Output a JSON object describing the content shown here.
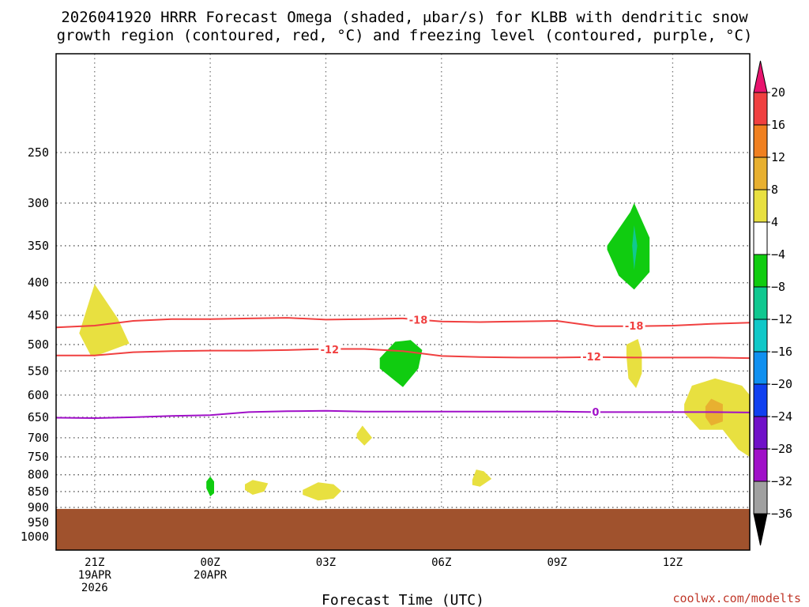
{
  "title_line1": "2026041920 HRRR Forecast Omega (shaded, μbar/s) for KLBB with dendritic snow",
  "title_line2": "growth region (contoured, red, °C) and freezing level (contoured, purple, °C)",
  "credit": "coolwx.com/modelts",
  "chart_data": {
    "type": "time-height cross section",
    "title": "2026041920 HRRR Forecast Omega (shaded, μbar/s) for KLBB with dendritic snow growth region (contoured, red, °C) and freezing level (contoured, purple, °C)",
    "xlabel": "Forecast Time (UTC)",
    "ylabel": "",
    "x_axis": {
      "unit": "hours from 2026-04-19 20Z",
      "range": [
        20,
        38
      ],
      "ticks": [
        {
          "x": 21,
          "labels": [
            "21Z",
            "19APR",
            "2026"
          ]
        },
        {
          "x": 24,
          "labels": [
            "00Z",
            "20APR"
          ]
        },
        {
          "x": 27,
          "labels": [
            "03Z"
          ]
        },
        {
          "x": 30,
          "labels": [
            "06Z"
          ]
        },
        {
          "x": 33,
          "labels": [
            "09Z"
          ]
        },
        {
          "x": 36,
          "labels": [
            "12Z"
          ]
        }
      ]
    },
    "y_axis": {
      "unit": "hPa",
      "scale": "log",
      "range_hPa": [
        1050,
        175
      ],
      "ticks": [
        250,
        300,
        350,
        400,
        450,
        500,
        550,
        600,
        650,
        700,
        750,
        800,
        850,
        900,
        950,
        1000
      ]
    },
    "grid": true,
    "terrain_fill": {
      "top_hPa": 905,
      "color": "#a0522d"
    },
    "colorbar": {
      "labels": [
        "20",
        "16",
        "12",
        "8",
        "4",
        "−4",
        "−8",
        "−12",
        "−16",
        "−20",
        "−24",
        "−28",
        "−32",
        "−36"
      ],
      "colors": [
        "#e8146e",
        "#f04040",
        "#f08020",
        "#e8b030",
        "#e8e040",
        "#ffffff",
        "#10cc10",
        "#10c890",
        "#10c8c8",
        "#1090f0",
        "#1040f0",
        "#7010c8",
        "#a010c8",
        "#a0a0a0",
        "#000000"
      ]
    },
    "contours": [
      {
        "label": "-18",
        "color": "#f04040",
        "points": [
          [
            20,
            470
          ],
          [
            21,
            467
          ],
          [
            22,
            459
          ],
          [
            23,
            456
          ],
          [
            24,
            456
          ],
          [
            25,
            455
          ],
          [
            26,
            454
          ],
          [
            27,
            457
          ],
          [
            28,
            456
          ],
          [
            29,
            455
          ],
          [
            30,
            460
          ],
          [
            31,
            461
          ],
          [
            32,
            460
          ],
          [
            33,
            459
          ],
          [
            34,
            468
          ],
          [
            35,
            468
          ],
          [
            36,
            467
          ],
          [
            37,
            464
          ],
          [
            38,
            462
          ]
        ],
        "label_positions": [
          [
            29.4,
            457
          ],
          [
            35.0,
            467
          ]
        ]
      },
      {
        "label": "-12",
        "color": "#f04040",
        "points": [
          [
            20,
            520
          ],
          [
            21,
            520
          ],
          [
            22,
            514
          ],
          [
            23,
            512
          ],
          [
            24,
            511
          ],
          [
            25,
            511
          ],
          [
            26,
            510
          ],
          [
            27,
            508
          ],
          [
            28,
            508
          ],
          [
            29,
            512
          ],
          [
            30,
            521
          ],
          [
            31,
            523
          ],
          [
            32,
            524
          ],
          [
            33,
            524
          ],
          [
            34,
            523
          ],
          [
            35,
            524
          ],
          [
            36,
            524
          ],
          [
            37,
            524
          ],
          [
            38,
            525
          ]
        ],
        "label_positions": [
          [
            27.1,
            509
          ],
          [
            33.9,
            522
          ]
        ]
      },
      {
        "label": "0",
        "color": "#a010c8",
        "points": [
          [
            20,
            651
          ],
          [
            21,
            652
          ],
          [
            22,
            650
          ],
          [
            23,
            647
          ],
          [
            24,
            645
          ],
          [
            25,
            638
          ],
          [
            26,
            636
          ],
          [
            27,
            635
          ],
          [
            28,
            637
          ],
          [
            29,
            637
          ],
          [
            30,
            637
          ],
          [
            31,
            637
          ],
          [
            32,
            637
          ],
          [
            33,
            637
          ],
          [
            34,
            638
          ],
          [
            35,
            638
          ],
          [
            36,
            638
          ],
          [
            37,
            638
          ],
          [
            38,
            639
          ]
        ],
        "label_positions": [
          [
            34.0,
            637
          ]
        ]
      }
    ],
    "shaded_regions": [
      {
        "name": "omega",
        "range": "4 to 8",
        "points": [
          [
            20.9,
            520
          ],
          [
            20.6,
            480
          ],
          [
            20.9,
            420
          ],
          [
            21.0,
            402
          ],
          [
            21.6,
            455
          ],
          [
            21.9,
            498
          ],
          [
            21.0,
            522
          ]
        ]
      },
      {
        "name": "omega",
        "range": "-8 to -4",
        "points": [
          [
            34.3,
            350
          ],
          [
            34.9,
            310
          ],
          [
            35.0,
            300
          ],
          [
            35.4,
            340
          ],
          [
            35.4,
            385
          ],
          [
            35.0,
            410
          ],
          [
            34.6,
            390
          ],
          [
            34.3,
            355
          ]
        ]
      },
      {
        "name": "omega",
        "range": "-12 to -8",
        "points": [
          [
            35.0,
            325
          ],
          [
            35.08,
            350
          ],
          [
            35.0,
            382
          ],
          [
            34.95,
            350
          ]
        ]
      },
      {
        "name": "omega",
        "range": "-8 to -4",
        "points": [
          [
            28.4,
            525
          ],
          [
            28.8,
            495
          ],
          [
            29.2,
            492
          ],
          [
            29.5,
            510
          ],
          [
            29.4,
            545
          ],
          [
            29.0,
            583
          ],
          [
            28.4,
            545
          ]
        ]
      },
      {
        "name": "omega",
        "range": "4 to 8",
        "points": [
          [
            34.8,
            500
          ],
          [
            35.1,
            490
          ],
          [
            35.2,
            515
          ],
          [
            35.2,
            555
          ],
          [
            35.05,
            585
          ],
          [
            34.85,
            565
          ],
          [
            34.8,
            520
          ]
        ]
      },
      {
        "name": "omega",
        "range": "4 to 8",
        "points": [
          [
            36.3,
            620
          ],
          [
            36.5,
            580
          ],
          [
            37.1,
            565
          ],
          [
            37.8,
            580
          ],
          [
            38.0,
            600
          ],
          [
            38.0,
            750
          ],
          [
            37.7,
            730
          ],
          [
            37.3,
            680
          ],
          [
            36.7,
            680
          ],
          [
            36.3,
            640
          ]
        ]
      },
      {
        "name": "omega",
        "range": "8 to 12",
        "points": [
          [
            36.85,
            625
          ],
          [
            37.0,
            608
          ],
          [
            37.3,
            620
          ],
          [
            37.3,
            660
          ],
          [
            37.0,
            670
          ],
          [
            36.85,
            650
          ]
        ]
      },
      {
        "name": "omega",
        "range": "4 to 8",
        "points": [
          [
            27.8,
            690
          ],
          [
            27.95,
            670
          ],
          [
            28.2,
            700
          ],
          [
            28.0,
            720
          ],
          [
            27.8,
            700
          ]
        ]
      },
      {
        "name": "omega",
        "range": "-8 to -4",
        "points": [
          [
            23.9,
            820
          ],
          [
            24.0,
            805
          ],
          [
            24.1,
            820
          ],
          [
            24.1,
            855
          ],
          [
            24.0,
            865
          ],
          [
            23.9,
            840
          ]
        ]
      },
      {
        "name": "omega",
        "range": "4 to 8",
        "points": [
          [
            24.9,
            828
          ],
          [
            25.1,
            815
          ],
          [
            25.5,
            825
          ],
          [
            25.4,
            850
          ],
          [
            25.1,
            860
          ],
          [
            24.9,
            845
          ]
        ]
      },
      {
        "name": "omega",
        "range": "4 to 8",
        "points": [
          [
            26.4,
            845
          ],
          [
            26.8,
            822
          ],
          [
            27.2,
            828
          ],
          [
            27.4,
            848
          ],
          [
            27.2,
            872
          ],
          [
            26.8,
            878
          ],
          [
            26.4,
            860
          ]
        ]
      },
      {
        "name": "omega",
        "range": "4 to 8",
        "points": [
          [
            30.8,
            815
          ],
          [
            30.9,
            785
          ],
          [
            31.1,
            790
          ],
          [
            31.3,
            812
          ],
          [
            31.0,
            835
          ],
          [
            30.8,
            830
          ]
        ]
      }
    ]
  }
}
